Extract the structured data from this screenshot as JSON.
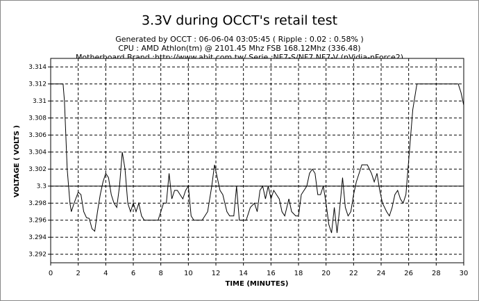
{
  "chart_data": {
    "type": "line",
    "title": "3.3V during OCCT's retail test",
    "subtitle": [
      "Generated by OCCT : 06-06-04 03:05:45 ( Ripple : 0.02 : 0.58% )",
      "CPU : AMD Athlon(tm)  @ 2101.45 Mhz FSB 168.12Mhz (336.48)",
      "Motherboard Brand :http://www.abit.com.tw/,Serie :NF7-S/NF7,NF7-V (nVidia-nForce2)"
    ],
    "xlabel": "TIME (MINUTES)",
    "ylabel": "VOLTAGE ( VOLTS )",
    "x": [
      0,
      0.9,
      1.0,
      1.2,
      1.4,
      1.5,
      1.7,
      2.0,
      2.2,
      2.4,
      2.6,
      2.8,
      3.0,
      3.2,
      3.4,
      3.6,
      3.8,
      4.0,
      4.2,
      4.4,
      4.6,
      4.8,
      5.0,
      5.2,
      5.4,
      5.6,
      5.8,
      6.0,
      6.2,
      6.4,
      6.6,
      6.8,
      7.0,
      7.5,
      7.8,
      8.0,
      8.2,
      8.4,
      8.6,
      8.8,
      9.0,
      9.2,
      9.4,
      9.6,
      9.8,
      10.0,
      10.2,
      10.4,
      11.0,
      11.4,
      11.7,
      11.9,
      12.1,
      12.3,
      12.5,
      12.8,
      13.0,
      13.3,
      13.5,
      13.7,
      14.2,
      14.5,
      14.8,
      15.0,
      15.2,
      15.4,
      15.6,
      15.8,
      16.0,
      16.2,
      16.4,
      16.6,
      16.8,
      17.0,
      17.3,
      17.5,
      17.8,
      18.0,
      18.2,
      18.6,
      18.8,
      19.0,
      19.2,
      19.4,
      19.6,
      19.8,
      20.0,
      20.2,
      20.4,
      20.6,
      20.8,
      21.0,
      21.2,
      21.4,
      21.6,
      21.8,
      22.0,
      22.2,
      22.4,
      22.6,
      23.0,
      23.3,
      23.5,
      23.7,
      23.9,
      24.1,
      24.4,
      24.6,
      24.8,
      25.0,
      25.2,
      25.4,
      25.6,
      25.8,
      26.0,
      26.3,
      26.6,
      28.0,
      29.6,
      29.8,
      30.0
    ],
    "values": [
      3.312,
      3.312,
      3.31,
      3.302,
      3.298,
      3.297,
      3.298,
      3.2993,
      3.299,
      3.297,
      3.2963,
      3.2962,
      3.295,
      3.2947,
      3.297,
      3.299,
      3.3005,
      3.3015,
      3.301,
      3.299,
      3.298,
      3.2975,
      3.3,
      3.304,
      3.302,
      3.298,
      3.297,
      3.298,
      3.297,
      3.298,
      3.2965,
      3.296,
      3.296,
      3.296,
      3.296,
      3.297,
      3.298,
      3.298,
      3.3015,
      3.2985,
      3.2995,
      3.2995,
      3.299,
      3.2985,
      3.2995,
      3.3,
      3.2965,
      3.296,
      3.296,
      3.297,
      3.3,
      3.3025,
      3.301,
      3.2995,
      3.299,
      3.297,
      3.2965,
      3.2965,
      3.3,
      3.296,
      3.296,
      3.2975,
      3.298,
      3.297,
      3.2995,
      3.3,
      3.2985,
      3.3,
      3.2985,
      3.2995,
      3.299,
      3.2985,
      3.297,
      3.2965,
      3.2985,
      3.297,
      3.2965,
      3.2965,
      3.299,
      3.3,
      3.3015,
      3.302,
      3.3015,
      3.299,
      3.299,
      3.3,
      3.298,
      3.2955,
      3.2945,
      3.2975,
      3.2945,
      3.2975,
      3.301,
      3.2975,
      3.2965,
      3.297,
      3.299,
      3.3005,
      3.3015,
      3.3025,
      3.3025,
      3.3015,
      3.3005,
      3.3015,
      3.2995,
      3.298,
      3.297,
      3.2965,
      3.2975,
      3.299,
      3.2995,
      3.2985,
      3.298,
      3.299,
      3.303,
      3.309,
      3.312,
      3.312,
      3.312,
      3.311,
      3.3095
    ],
    "color": "#000000",
    "reference_line": 3.3,
    "xlim": [
      0,
      30
    ],
    "ylim": [
      3.291,
      3.315
    ],
    "xticks": [
      0,
      2,
      4,
      6,
      8,
      10,
      12,
      14,
      16,
      18,
      20,
      22,
      24,
      26,
      28,
      30
    ],
    "yticks": [
      3.292,
      3.294,
      3.296,
      3.298,
      3.3,
      3.302,
      3.304,
      3.306,
      3.308,
      3.31,
      3.312,
      3.314
    ],
    "grid": true
  }
}
